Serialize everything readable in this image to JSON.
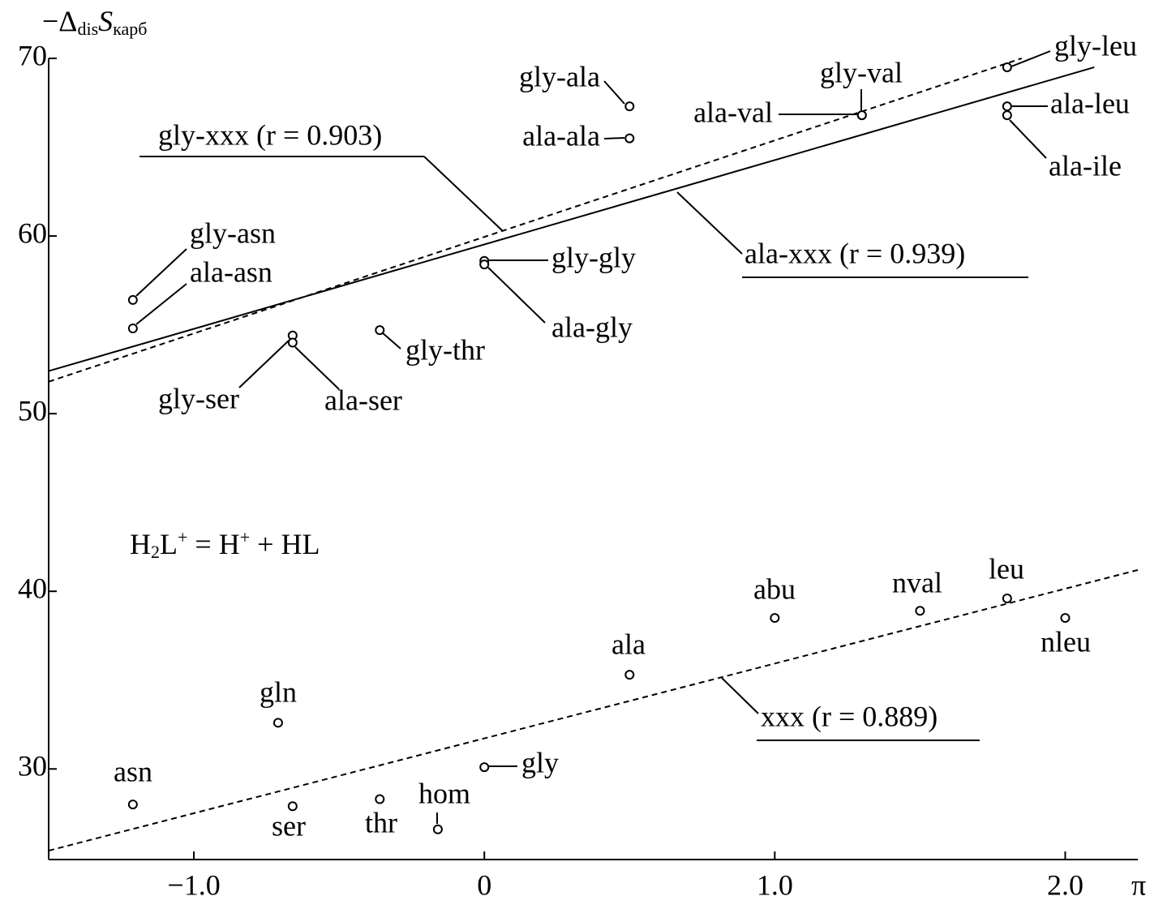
{
  "chart_data": {
    "type": "scatter",
    "y_label": [
      "−Δ",
      "dis",
      "S",
      "карб"
    ],
    "x_label": "π",
    "annotation": [
      "H",
      "2",
      "L",
      "+",
      " = H",
      "+",
      " + HL"
    ],
    "xlim": [
      -1.5,
      2.25
    ],
    "ylim": [
      24.9,
      70
    ],
    "xticks": [
      {
        "value": -1,
        "label": "−1.0"
      },
      0,
      {
        "value": 1,
        "label": "1.0"
      },
      {
        "value": 2,
        "label": "2.0"
      }
    ],
    "yticks": [
      30,
      40,
      50,
      60,
      70
    ],
    "color": "#000000",
    "series": [
      {
        "name": "gly-xxx",
        "labels": [
          "gly-ala",
          "gly-val",
          "gly-leu",
          "gly-asn",
          "gly-gly",
          "gly-ser",
          "gly-thr"
        ],
        "x": [
          0.5,
          1.3,
          1.8,
          -1.21,
          0,
          -0.66,
          -0.36
        ],
        "values": [
          67.3,
          66.8,
          69.5,
          56.4,
          58.6,
          54.4,
          54.7
        ],
        "fit": {
          "label": "gly-xxx (r = 0.903)",
          "dashed": true,
          "x": [
            -1.5,
            1.85
          ],
          "y": [
            51.8,
            70.0
          ]
        }
      },
      {
        "name": "ala-xxx",
        "labels": [
          "ala-ala",
          "ala-val",
          "ala-leu",
          "ala-ile",
          "ala-asn",
          "ala-gly",
          "ala-ser"
        ],
        "x": [
          0.5,
          1.3,
          1.8,
          1.8,
          -1.21,
          0,
          -0.66
        ],
        "values": [
          65.5,
          66.8,
          67.3,
          66.8,
          54.8,
          58.4,
          54.0
        ],
        "fit": {
          "label": "ala-xxx (r = 0.939)",
          "dashed": false,
          "x": [
            -1.5,
            2.1
          ],
          "y": [
            52.4,
            69.5
          ]
        }
      },
      {
        "name": "xxx",
        "labels": [
          "asn",
          "gln",
          "ser",
          "thr",
          "hom",
          "gly",
          "ala",
          "abu",
          "nval",
          "leu",
          "nleu"
        ],
        "x": [
          -1.21,
          -0.71,
          -0.66,
          -0.36,
          -0.16,
          0,
          0.5,
          1.0,
          1.5,
          1.8,
          2.0
        ],
        "values": [
          28.0,
          32.6,
          27.9,
          28.3,
          26.6,
          30.1,
          35.3,
          38.5,
          38.9,
          39.6,
          38.5
        ],
        "fit": {
          "label": "xxx (r = 0.889)",
          "dashed": true,
          "x": [
            -1.5,
            2.25
          ],
          "y": [
            25.4,
            41.2
          ]
        }
      }
    ]
  }
}
